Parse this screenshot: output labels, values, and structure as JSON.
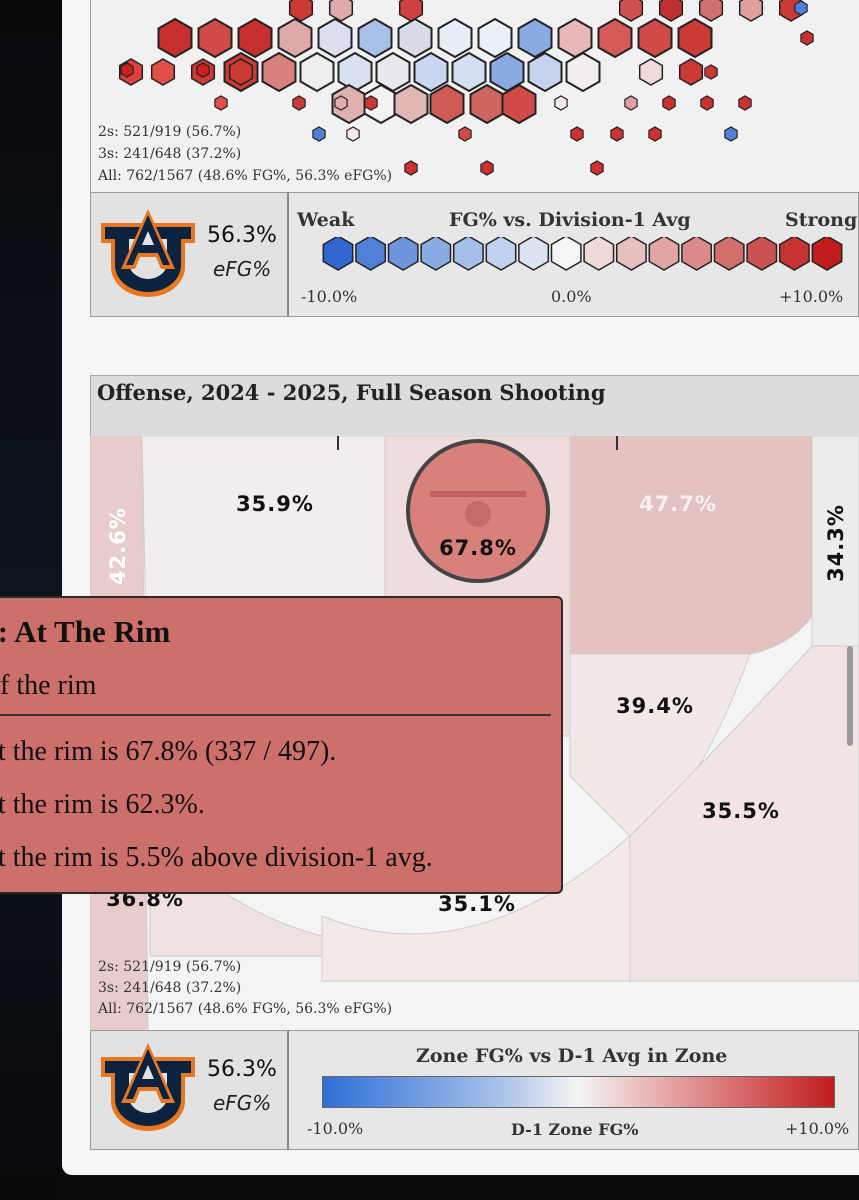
{
  "top_panel": {
    "stats": [
      "2s: 521/919 (56.7%)",
      "3s: 241/648 (37.2%)",
      "All: 762/1567 (48.6% FG%, 56.3% eFG%)"
    ],
    "efg_value": "56.3%",
    "efg_label": "eFG%",
    "legend": {
      "left": "Weak",
      "title": "FG% vs. Division-1 Avg",
      "right": "Strong",
      "min": "-10.0%",
      "mid": "0.0%",
      "max": "+10.0%"
    }
  },
  "zone_panel": {
    "title": "Offense, 2024 - 2025, Full Season Shooting",
    "zones": {
      "left_corner": "42.6%",
      "left_wing_three": "35.9%",
      "rim": "67.8%",
      "right_wing_three": "47.7%",
      "right_corner": "34.3%",
      "right_mid": "39.4%",
      "right_top_three": "35.5%",
      "left_top_three": "36.8%",
      "top_three": "35.1%"
    },
    "stats": [
      "2s: 521/919 (56.7%)",
      "3s: 241/648 (37.2%)",
      "All: 762/1567 (48.6% FG%, 56.3% eFG%)"
    ],
    "efg_value": "56.3%",
    "efg_label": "eFG%",
    "legend": {
      "title": "Zone FG% vs D-1 Avg in Zone",
      "min": "-10.0%",
      "mid": "D-1 Zone FG%",
      "max": "+10.0%"
    }
  },
  "tooltip": {
    "title": "e: At The Rim",
    "subtitle": "f the rim",
    "lines": [
      "t the rim is 67.8% (337 / 497).",
      "t the rim is 62.3%.",
      "t the rim is 5.5% above division-1 avg."
    ]
  }
}
